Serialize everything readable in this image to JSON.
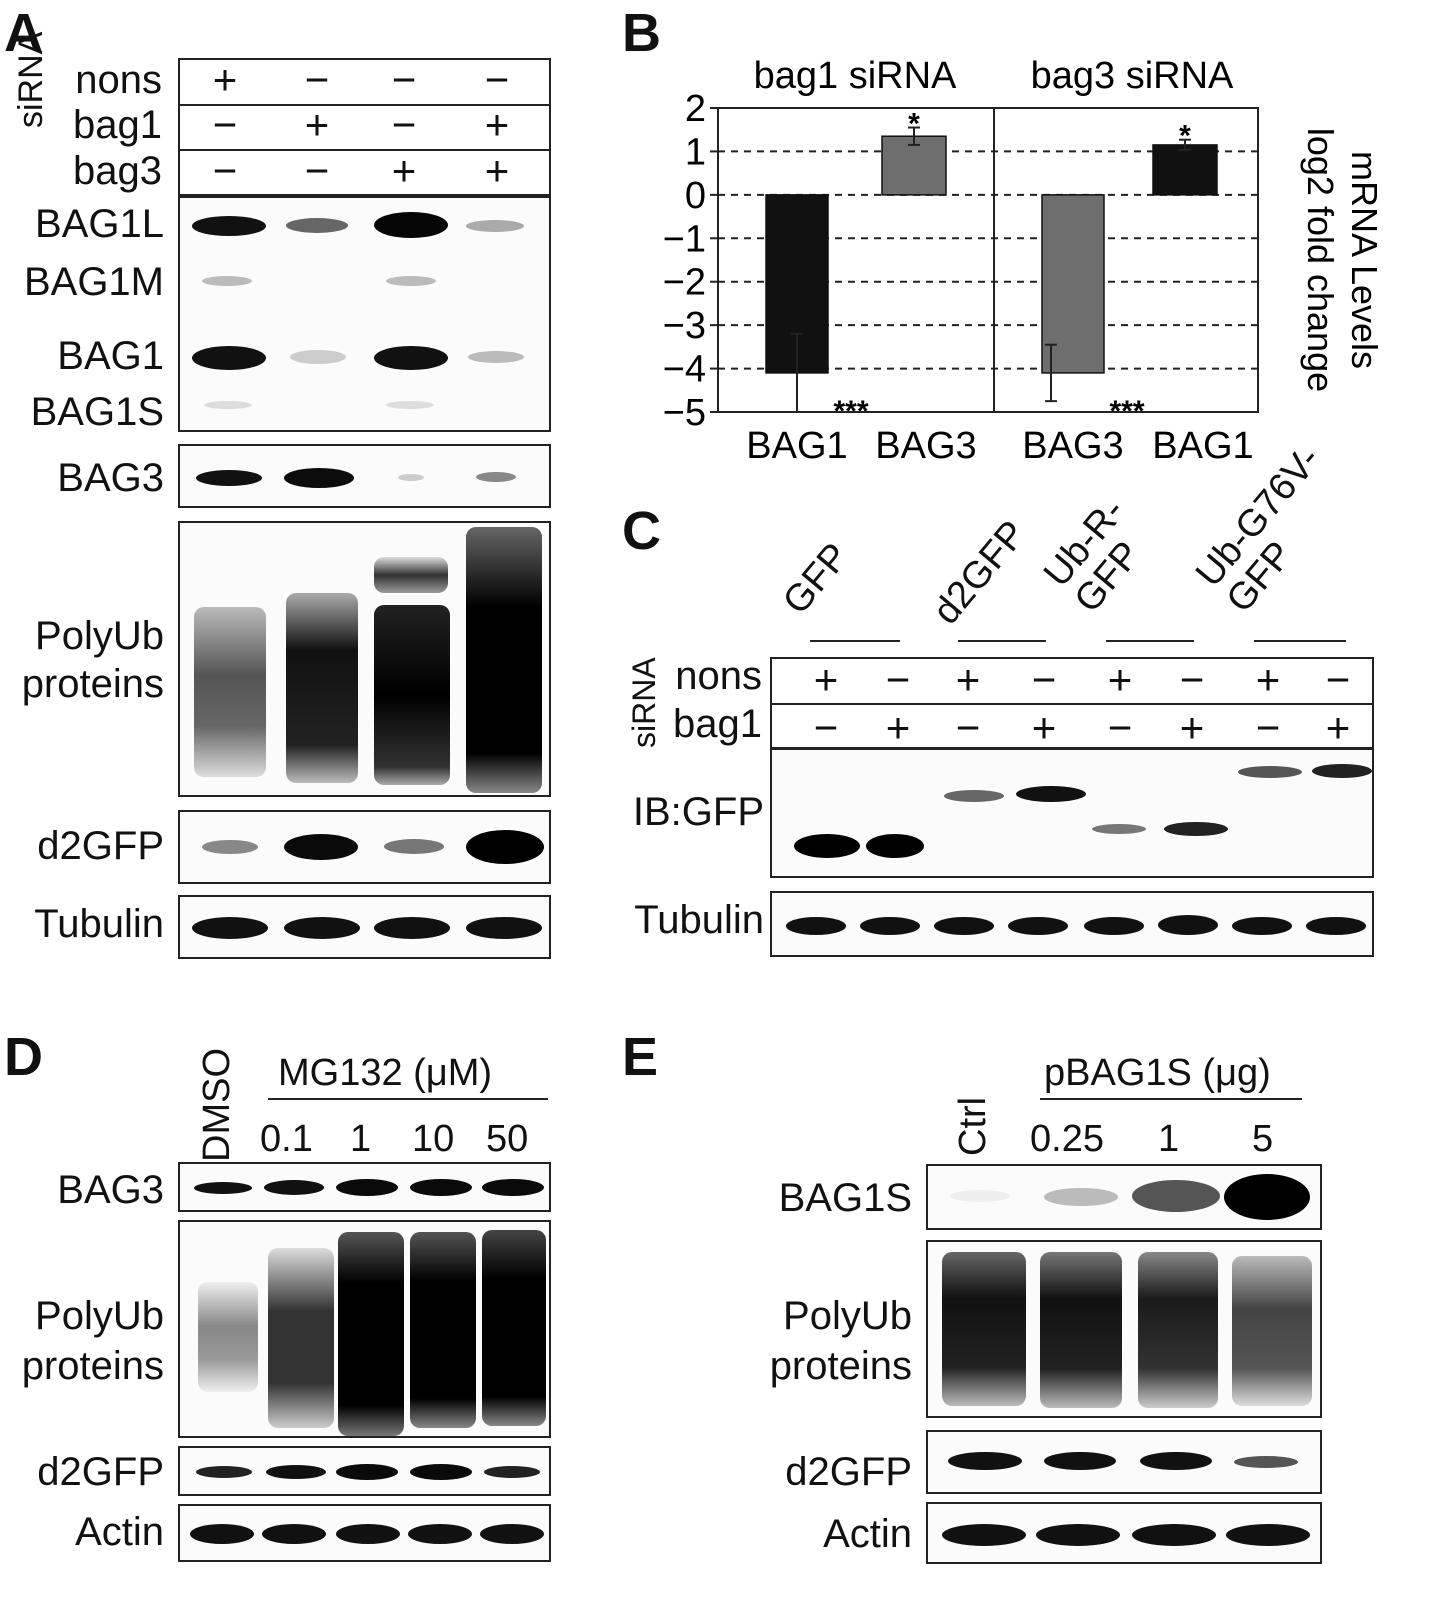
{
  "panels": {
    "A": "A",
    "B": "B",
    "C": "C",
    "D": "D",
    "E": "E"
  },
  "panelA": {
    "sirna_label": "siRNA",
    "rows": [
      {
        "name": "nons",
        "signs": [
          "+",
          "−",
          "−",
          "−"
        ]
      },
      {
        "name": "bag1",
        "signs": [
          "−",
          "+",
          "−",
          "+"
        ]
      },
      {
        "name": "bag3",
        "signs": [
          "−",
          "−",
          "+",
          "+"
        ]
      }
    ],
    "blot_labels": {
      "bag1l": "BAG1L",
      "bag1m": "BAG1M",
      "bag1": "BAG1",
      "bag1s": "BAG1S",
      "bag3": "BAG3",
      "polyub1": "PolyUb",
      "polyub2": "proteins",
      "d2gfp": "d2GFP",
      "tubulin": "Tubulin"
    }
  },
  "panelB": {
    "ylabel_line1": "mRNA Levels",
    "ylabel_line2": "log2 fold change",
    "groups": [
      "bag1 siRNA",
      "bag3 siRNA"
    ]
  },
  "chart_data": {
    "type": "bar",
    "categories": [
      "BAG1",
      "BAG3",
      "BAG3",
      "BAG1"
    ],
    "groups": [
      "bag1 siRNA",
      "bag1 siRNA",
      "bag3 siRNA",
      "bag3 siRNA"
    ],
    "values": [
      -4.1,
      1.35,
      -4.1,
      1.15
    ],
    "errors": [
      0.9,
      0.2,
      0.65,
      0.12
    ],
    "significance": [
      "***",
      "*",
      "***",
      "*"
    ],
    "colors": [
      "#111111",
      "#6e6e6e",
      "#6e6e6e",
      "#111111"
    ],
    "ylim": [
      -5,
      2
    ],
    "yticks": [
      "2",
      "1",
      "0",
      "−1",
      "−2",
      "−3",
      "−4",
      "−5"
    ],
    "ylabel": "mRNA Levels log2 fold change",
    "grid": "dashed horizontal"
  },
  "panelC": {
    "constructs": [
      "GFP",
      "d2GFP",
      "Ub-R-\nGFP",
      "Ub-G76V-\nGFP"
    ],
    "sirna_label": "siRNA",
    "rows": [
      {
        "name": "nons",
        "signs": [
          "+",
          "−",
          "+",
          "−",
          "+",
          "−",
          "+",
          "−"
        ]
      },
      {
        "name": "bag1",
        "signs": [
          "−",
          "+",
          "−",
          "+",
          "−",
          "+",
          "−",
          "+"
        ]
      }
    ],
    "blot_labels": {
      "ibgfp": "IB:GFP",
      "tubulin": "Tubulin"
    }
  },
  "panelD": {
    "dmso": "DMSO",
    "treatment": "MG132 (μM)",
    "doses": [
      "0.1",
      "1",
      "10",
      "50"
    ],
    "blot_labels": {
      "bag3": "BAG3",
      "polyub1": "PolyUb",
      "polyub2": "proteins",
      "d2gfp": "d2GFP",
      "actin": "Actin"
    }
  },
  "panelE": {
    "ctrl": "Ctrl",
    "treatment": "pBAG1S (μg)",
    "doses": [
      "0.25",
      "1",
      "5"
    ],
    "blot_labels": {
      "bag1s": "BAG1S",
      "polyub1": "PolyUb",
      "polyub2": "proteins",
      "d2gfp": "d2GFP",
      "actin": "Actin"
    }
  }
}
